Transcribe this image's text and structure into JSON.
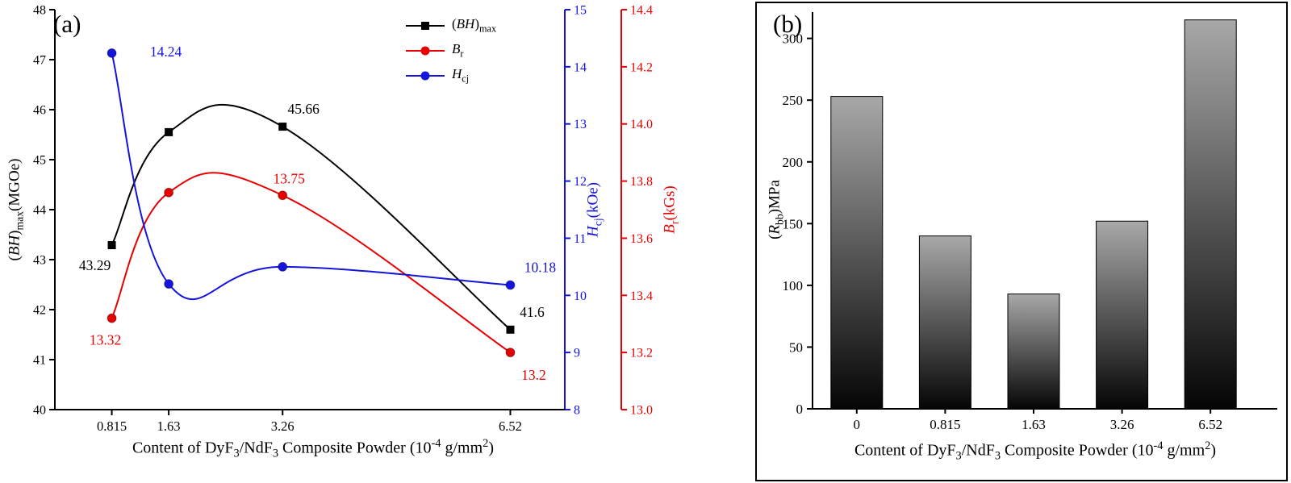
{
  "chart_data": [
    {
      "type": "line",
      "panel_label": "(a)",
      "xlabel_parts": [
        {
          "t": "Content of  DyF"
        },
        {
          "t": "3",
          "s": true
        },
        {
          "t": "/NdF"
        },
        {
          "t": "3",
          "s": true
        },
        {
          "t": " Composite Powder (10"
        },
        {
          "t": "-4",
          "u": true
        },
        {
          "t": " g/mm"
        },
        {
          "t": "2",
          "u": true
        },
        {
          "t": ")"
        }
      ],
      "x_ticks": [
        "0.815",
        "1.63",
        "3.26",
        "6.52"
      ],
      "x_values": [
        0.815,
        1.63,
        3.26,
        6.52
      ],
      "x_range": [
        0,
        7.3
      ],
      "axes": {
        "left": {
          "label_parts": [
            {
              "t": "("
            },
            {
              "t": "BH",
              "i": true
            },
            {
              "t": ")"
            },
            {
              "t": "max",
              "s": true
            },
            {
              "t": "(MGOe)"
            }
          ],
          "ticks": [
            "40",
            "41",
            "42",
            "43",
            "44",
            "45",
            "46",
            "47",
            "48"
          ],
          "range": [
            40,
            48
          ],
          "color": "#000000"
        },
        "blue": {
          "label_parts": [
            {
              "t": "H",
              "i": true
            },
            {
              "t": "cj",
              "s": true
            },
            {
              "t": "(kOe)"
            }
          ],
          "ticks": [
            "8",
            "9",
            "10",
            "11",
            "12",
            "13",
            "14",
            "15"
          ],
          "range": [
            8,
            15
          ],
          "color": "#1414dc"
        },
        "red": {
          "label_parts": [
            {
              "t": "B",
              "i": true
            },
            {
              "t": "r",
              "s": true
            },
            {
              "t": "(kGs)"
            }
          ],
          "ticks": [
            "13.0",
            "13.2",
            "13.4",
            "13.6",
            "13.8",
            "14.0",
            "14.2",
            "14.4"
          ],
          "range": [
            13.0,
            14.4
          ],
          "color": "#e60000"
        }
      },
      "series": [
        {
          "name_parts": [
            {
              "t": "("
            },
            {
              "t": "BH",
              "i": true
            },
            {
              "t": ")"
            },
            {
              "t": "max",
              "s": true
            }
          ],
          "axis": "left",
          "marker": "square",
          "color": "#000000",
          "values": [
            43.29,
            45.55,
            45.66,
            41.6
          ],
          "point_labels": [
            "43.29",
            null,
            "45.66",
            "41.6"
          ],
          "label_offsets": [
            [
              -21,
              31
            ],
            [
              0,
              0
            ],
            [
              26,
              -16
            ],
            [
              27,
              -16
            ]
          ]
        },
        {
          "name_parts": [
            {
              "t": "B",
              "i": true
            },
            {
              "t": "r",
              "s": true
            }
          ],
          "axis": "red",
          "marker": "circle",
          "color": "#e60000",
          "values": [
            13.32,
            13.76,
            13.75,
            13.2
          ],
          "point_labels": [
            "13.32",
            null,
            "13.75",
            "13.2"
          ],
          "label_offsets": [
            [
              -8,
              33
            ],
            [
              0,
              0
            ],
            [
              8,
              -15
            ],
            [
              29,
              34
            ]
          ]
        },
        {
          "name_parts": [
            {
              "t": "H",
              "i": true
            },
            {
              "t": "cj",
              "s": true
            }
          ],
          "axis": "blue",
          "marker": "circle",
          "color": "#1414dc",
          "values": [
            14.24,
            10.2,
            10.5,
            10.18
          ],
          "point_labels": [
            "14.24",
            null,
            null,
            "10.18"
          ],
          "label_offsets": [
            [
              67,
              4
            ],
            [
              0,
              0
            ],
            [
              0,
              0
            ],
            [
              37,
              -16
            ]
          ]
        }
      ]
    },
    {
      "type": "bar",
      "panel_label": "(b)",
      "xlabel_parts": [
        {
          "t": "Content of  DyF"
        },
        {
          "t": "3",
          "s": true
        },
        {
          "t": "/NdF"
        },
        {
          "t": "3",
          "s": true
        },
        {
          "t": " Composite Powder (10"
        },
        {
          "t": "-4",
          "u": true
        },
        {
          "t": " g/mm"
        },
        {
          "t": "2",
          "u": true
        },
        {
          "t": ")"
        }
      ],
      "ylabel_parts": [
        {
          "t": "("
        },
        {
          "t": "R",
          "i": true
        },
        {
          "t": "bb",
          "s": true
        },
        {
          "t": ")MPa"
        }
      ],
      "categories": [
        "0",
        "0.815",
        "1.63",
        "3.26",
        "6.52"
      ],
      "values": [
        253,
        140,
        93,
        152,
        315
      ],
      "yticks": [
        "0",
        "50",
        "100",
        "150",
        "200",
        "250",
        "300"
      ],
      "ylim": [
        0,
        320
      ],
      "bar_gradient_top": "#a8a8a8",
      "bar_gradient_bottom": "#050505",
      "axis_color": "#000000"
    }
  ]
}
